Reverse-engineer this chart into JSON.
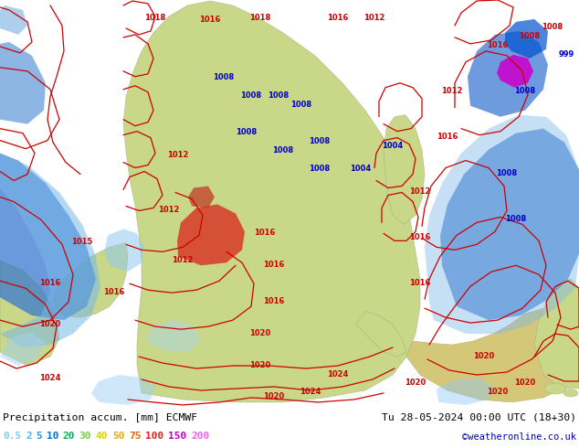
{
  "title_left": "Precipitation accum. [mm] ECMWF",
  "title_right": "Tu 28-05-2024 00:00 UTC (18+30)",
  "credit": "©weatheronline.co.uk",
  "legend_values": [
    "0.5",
    "2",
    "5",
    "10",
    "20",
    "30",
    "40",
    "50",
    "75",
    "100",
    "150",
    "200"
  ],
  "value_colors": {
    "0.5": "#7ecef4",
    "2": "#4db8f0",
    "5": "#1a9fea",
    "10": "#0070d0",
    "20": "#00b050",
    "30": "#70d050",
    "40": "#d4d400",
    "50": "#f0a800",
    "75": "#f06000",
    "100": "#e02020",
    "150": "#c000c0",
    "200": "#f060f0"
  },
  "bg_color": "#ffffff",
  "ocean_color": "#b8d8f0",
  "land_color": "#c8d888",
  "figsize": [
    6.34,
    4.9
  ],
  "dpi": 100,
  "red_labels": [
    [
      55,
      415,
      "1024"
    ],
    [
      55,
      355,
      "1020"
    ],
    [
      55,
      310,
      "1016"
    ],
    [
      90,
      265,
      "1015"
    ],
    [
      170,
      20,
      "1018"
    ],
    [
      285,
      20,
      "1018"
    ],
    [
      230,
      22,
      "1016"
    ],
    [
      370,
      20,
      "1016"
    ],
    [
      410,
      20,
      "1012"
    ],
    [
      195,
      170,
      "1012"
    ],
    [
      185,
      230,
      "1012"
    ],
    [
      200,
      285,
      "1012"
    ],
    [
      290,
      255,
      "1016"
    ],
    [
      300,
      290,
      "1016"
    ],
    [
      300,
      330,
      "1016"
    ],
    [
      285,
      365,
      "1020"
    ],
    [
      285,
      400,
      "1020"
    ],
    [
      300,
      435,
      "1020"
    ],
    [
      340,
      430,
      "1024"
    ],
    [
      370,
      410,
      "1024"
    ],
    [
      460,
      310,
      "1016"
    ],
    [
      460,
      260,
      "1016"
    ],
    [
      460,
      210,
      "1012"
    ],
    [
      490,
      150,
      "1016"
    ],
    [
      495,
      100,
      "1012"
    ],
    [
      545,
      50,
      "1016"
    ],
    [
      580,
      40,
      "1008"
    ],
    [
      605,
      30,
      "1008"
    ],
    [
      530,
      390,
      "1020"
    ],
    [
      545,
      430,
      "1020"
    ],
    [
      575,
      420,
      "1020"
    ],
    [
      455,
      420,
      "1020"
    ],
    [
      125,
      320,
      "1016"
    ]
  ],
  "blue_labels": [
    [
      245,
      85,
      "1008"
    ],
    [
      275,
      105,
      "1008"
    ],
    [
      305,
      105,
      "1008"
    ],
    [
      330,
      115,
      "1008"
    ],
    [
      270,
      145,
      "1008"
    ],
    [
      310,
      165,
      "1008"
    ],
    [
      350,
      155,
      "1008"
    ],
    [
      350,
      185,
      "1008"
    ],
    [
      395,
      185,
      "1004"
    ],
    [
      430,
      160,
      "1004"
    ],
    [
      555,
      190,
      "1008"
    ],
    [
      565,
      240,
      "1008"
    ],
    [
      575,
      100,
      "1008"
    ],
    [
      620,
      60,
      "999"
    ]
  ]
}
